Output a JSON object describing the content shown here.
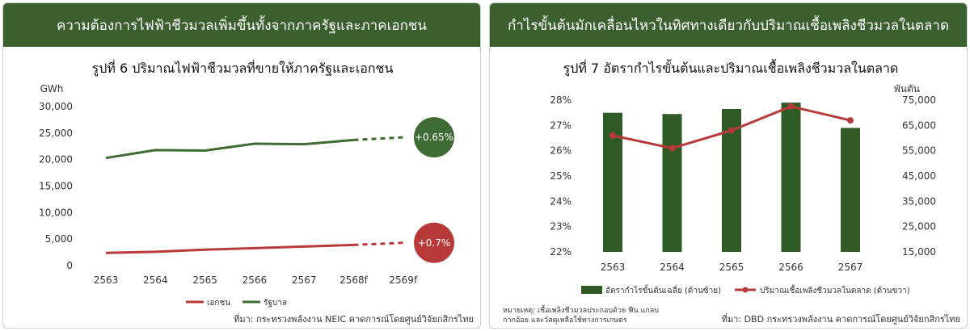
{
  "left_panel": {
    "header": "ความต้องการไฟฟ้าชีวมวลเพิ่มขึ้นทั้งจากภาครัฐและภาคเอกชน",
    "source": "ที่มา: กระทรวงพลังงาน NEIC คาดการณ์โดยศูนย์วิจัยกสิกรไทย"
  },
  "right_panel": {
    "header": "กำไรขั้นต้นมักเคลื่อนไหวในทิศทางเดียวกับปริมาณเชื้อเพลิงชีวมวลในตลาด",
    "note_line1": "หมายเหตุ: เชื้อเพลิงชีวมวลประกอบด้วย ฟืน แกลบ",
    "note_line2": "กากอ้อย และวัสดุเหลือใช้ทางการเกษตร",
    "source": "ที่มา: DBD กระทรวงพลังงาน คาดการณ์โดยศูนย์วิจัยกสิกรไทย"
  },
  "colors": {
    "header_bg": "#3b5f2f",
    "government": "#3f6b34",
    "private": "#b8393a",
    "bar": "#2f5a26",
    "line": "#b8393a"
  },
  "chart_data": [
    {
      "type": "line",
      "title": "รูปที่ 6 ปริมาณไฟฟ้าชีวมวลที่ขายให้ภาครัฐและเอกชน",
      "ylabel": "GWh",
      "categories": [
        "2563",
        "2564",
        "2565",
        "2566",
        "2567",
        "2568f",
        "2569f"
      ],
      "ylim": [
        0,
        30000
      ],
      "yticks": [
        "0",
        "5,000",
        "10,000",
        "15,000",
        "20,000",
        "25,000",
        "30,000"
      ],
      "forecast_from_index": 5,
      "legend_position": "bottom",
      "series": [
        {
          "name": "เอกชน",
          "values": [
            2400,
            2600,
            3000,
            3300,
            3600,
            3900,
            4300
          ],
          "growth_label": "+0.7%"
        },
        {
          "name": "รัฐบาล",
          "values": [
            20300,
            21800,
            21700,
            23000,
            22900,
            23700,
            24200
          ],
          "growth_label": "+0.65%"
        }
      ]
    },
    {
      "type": "bar",
      "title": "รูปที่ 7 อัตรากำไรขั้นต้นและปริมาณเชื้อเพลิงชีวมวลในตลาด",
      "categories": [
        "2563",
        "2564",
        "2565",
        "2566",
        "2567"
      ],
      "left_axis": {
        "ylim": [
          22,
          28
        ],
        "ticks": [
          "22%",
          "23%",
          "24%",
          "25%",
          "26%",
          "27%",
          "28%"
        ]
      },
      "right_axis": {
        "label": "พันตัน",
        "ylim": [
          15000,
          75000
        ],
        "ticks": [
          "15,000",
          "25,000",
          "35,000",
          "45,000",
          "55,000",
          "65,000",
          "75,000"
        ]
      },
      "legend_position": "bottom",
      "series": [
        {
          "name": "อัตรากำไรขั้นต้นเฉลี่ย (ด้านซ้าย)",
          "type": "bar",
          "axis": "left",
          "values": [
            27.5,
            27.45,
            27.65,
            27.9,
            26.9
          ]
        },
        {
          "name": "ปริมาณเชื้อเพลิงชีวมวลในตลาด (ด้านขวา)",
          "type": "line",
          "axis": "right",
          "values": [
            61000,
            56000,
            63000,
            72500,
            67000
          ]
        }
      ]
    }
  ]
}
